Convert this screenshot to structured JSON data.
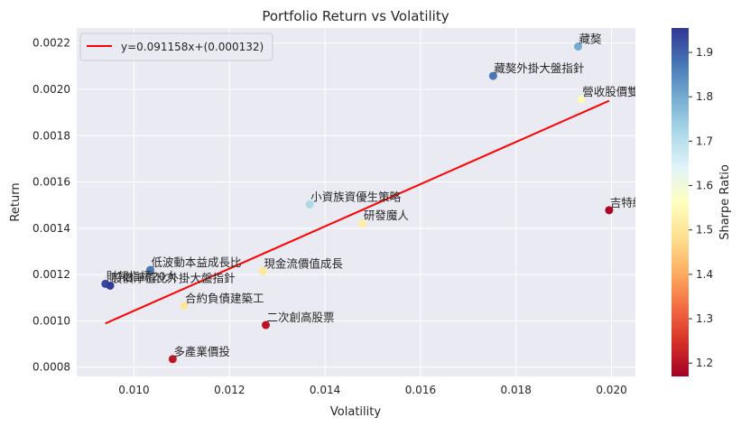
{
  "chart_data": {
    "type": "scatter",
    "title": "Portfolio Return vs Volatility",
    "xlabel": "Volatility",
    "ylabel": "Return",
    "xlim": [
      0.0088,
      0.0205
    ],
    "ylim": [
      0.00076,
      0.002265
    ],
    "xticks": [
      0.01,
      0.012,
      0.014,
      0.016,
      0.018,
      0.02
    ],
    "xtick_labels": [
      "0.010",
      "0.012",
      "0.014",
      "0.016",
      "0.018",
      "0.020"
    ],
    "yticks": [
      0.0008,
      0.001,
      0.0012,
      0.0014,
      0.0016,
      0.0018,
      0.002,
      0.0022
    ],
    "ytick_labels": [
      "0.0008",
      "0.0010",
      "0.0012",
      "0.0014",
      "0.0016",
      "0.0018",
      "0.0020",
      "0.0022"
    ],
    "grid": true,
    "legend": {
      "position": "top-left",
      "label": "y=0.091158x+(0.000132)"
    },
    "trendline": {
      "slope": 0.091158,
      "intercept": 0.000132,
      "x_range": [
        0.0094,
        0.01995
      ],
      "color": "#ff0000"
    },
    "colorbar": {
      "label": "Sharpe Ratio",
      "range": [
        1.17,
        1.955
      ],
      "ticks": [
        1.2,
        1.3,
        1.4,
        1.5,
        1.6,
        1.7,
        1.8,
        1.9
      ],
      "tick_labels": [
        "1.2",
        "1.3",
        "1.4",
        "1.5",
        "1.6",
        "1.7",
        "1.8",
        "1.9"
      ],
      "colormap": "RdYlBu"
    },
    "points": [
      {
        "label": "藏獒",
        "x": 0.0193,
        "y": 0.002185,
        "sharpe": 1.8
      },
      {
        "label": "藏獒外掛大盤指針",
        "x": 0.01752,
        "y": 0.002058,
        "sharpe": 1.87
      },
      {
        "label": "營收股價雙渦輪",
        "x": 0.01937,
        "y": 0.001957,
        "sharpe": 1.55
      },
      {
        "label": "小資族資優生策略",
        "x": 0.01368,
        "y": 0.001503,
        "sharpe": 1.72
      },
      {
        "label": "研發魔人",
        "x": 0.01479,
        "y": 0.001422,
        "sharpe": 1.52
      },
      {
        "label": "吉特納通道突破",
        "x": 0.01995,
        "y": 0.001478,
        "sharpe": 1.18
      },
      {
        "label": "低波動本益成長比",
        "x": 0.01034,
        "y": 0.00122,
        "sharpe": 1.87
      },
      {
        "label": "現金流價值成長",
        "x": 0.0127,
        "y": 0.001215,
        "sharpe": 1.5
      },
      {
        "label": "財報指標20大",
        "x": 0.0094,
        "y": 0.00116,
        "sharpe": 1.93
      },
      {
        "label": "股價淨值比外掛大盤指針",
        "x": 0.0095,
        "y": 0.001152,
        "sharpe": 1.95
      },
      {
        "label": "合約負債建築工",
        "x": 0.01105,
        "y": 0.001065,
        "sharpe": 1.5
      },
      {
        "label": "二次創高股票",
        "x": 0.01276,
        "y": 0.000982,
        "sharpe": 1.2
      },
      {
        "label": "多產業價投",
        "x": 0.01081,
        "y": 0.000835,
        "sharpe": 1.21
      }
    ]
  }
}
